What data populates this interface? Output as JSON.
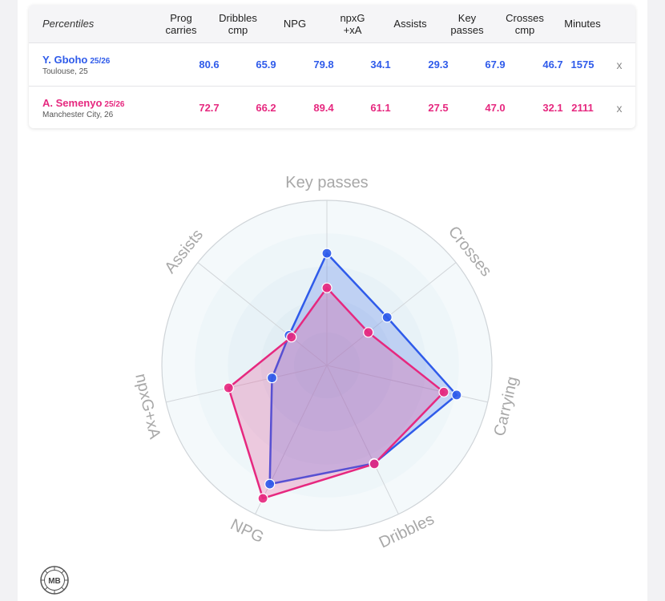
{
  "table": {
    "corner_label": "Percentiles",
    "columns": [
      {
        "line1": "Prog",
        "line2": "carries"
      },
      {
        "line1": "Dribbles",
        "line2": "cmp"
      },
      {
        "line1": "NPG",
        "line2": ""
      },
      {
        "line1": "npxG",
        "line2": "+xA"
      },
      {
        "line1": "Assists",
        "line2": ""
      },
      {
        "line1": "Key",
        "line2": "passes"
      },
      {
        "line1": "Crosses",
        "line2": "cmp"
      },
      {
        "line1": "Minutes",
        "line2": ""
      }
    ],
    "rows": [
      {
        "name": "Y. Gboho",
        "season": "25/26",
        "meta": "Toulouse, 25",
        "values": [
          "80.6",
          "65.9",
          "79.8",
          "34.1",
          "29.3",
          "67.9",
          "46.7",
          "1575"
        ],
        "remove_label": "x",
        "color": "#2f5bea"
      },
      {
        "name": "A. Semenyo",
        "season": "25/26",
        "meta": "Manchester City, 26",
        "values": [
          "72.7",
          "66.2",
          "89.4",
          "61.1",
          "27.5",
          "47.0",
          "32.1",
          "2111"
        ],
        "remove_label": "x",
        "color": "#e6287f"
      }
    ]
  },
  "chart_data": {
    "type": "radar",
    "axes": [
      "Key passes",
      "Crosses",
      "Carrying",
      "Dribbles",
      "NPG",
      "npxG+xA",
      "Assists"
    ],
    "range": [
      0,
      100
    ],
    "grid": true,
    "series": [
      {
        "name": "Y. Gboho",
        "color": "#2f5bea",
        "values": [
          67.9,
          46.7,
          80.6,
          65.9,
          79.8,
          34.1,
          29.3
        ]
      },
      {
        "name": "A. Semenyo",
        "color": "#e6287f",
        "values": [
          47.0,
          32.1,
          72.7,
          66.2,
          89.4,
          61.1,
          27.5
        ]
      }
    ]
  },
  "logo": {
    "text": "MB",
    "icon": "mb-logo-icon"
  }
}
